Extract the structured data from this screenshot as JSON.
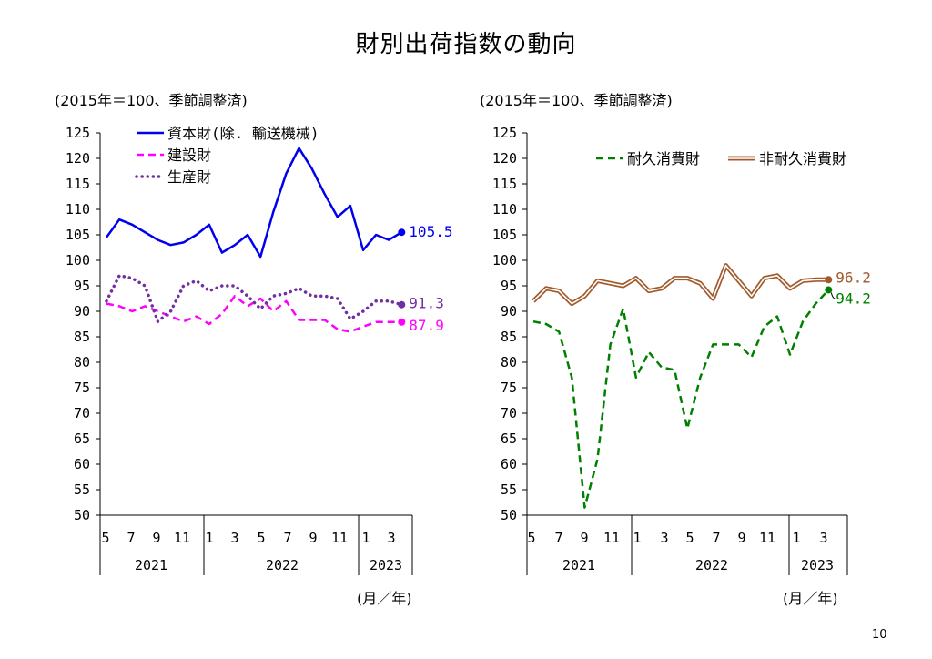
{
  "page": {
    "title": "財別出荷指数の動向",
    "page_number": "10"
  },
  "chart_data": [
    {
      "type": "line",
      "base_note": "(2015年＝100、季節調整済)",
      "unit_note": "(月／年)",
      "ylim": [
        50,
        125
      ],
      "yticks": [
        125,
        120,
        115,
        110,
        105,
        100,
        95,
        90,
        85,
        80,
        75,
        70,
        65,
        60,
        55,
        50
      ],
      "month_labels": [
        "5",
        "7",
        "9",
        "11",
        "1",
        "3",
        "5",
        "7",
        "9",
        "11",
        "1",
        "3"
      ],
      "year_labels": [
        "2021",
        "2022",
        "2023"
      ],
      "legend_position": "top-left",
      "series": [
        {
          "name": "資本財(除. 輸送機械)",
          "color": "#0000ee",
          "style": "solid",
          "end_label": "105.5",
          "values": [
            104.5,
            108,
            107,
            105.5,
            104,
            103,
            103.5,
            105,
            107,
            101.5,
            103,
            105,
            100.7,
            109.5,
            117,
            122,
            118,
            113,
            108.5,
            110.7,
            102,
            105,
            104,
            105.5
          ]
        },
        {
          "name": "建設財",
          "color": "#ff00ff",
          "style": "dashed",
          "end_label": "87.9",
          "values": [
            91.5,
            91,
            90,
            91,
            90,
            89,
            88,
            89,
            87.5,
            89.5,
            93,
            91,
            92.5,
            90,
            92,
            88.3,
            88.3,
            88.3,
            86.5,
            86,
            87,
            87.9,
            87.9,
            87.9
          ]
        },
        {
          "name": "生産財",
          "color": "#7030a0",
          "style": "dotted",
          "end_label": "91.3",
          "values": [
            92,
            97,
            96.5,
            95,
            88,
            90,
            95,
            96,
            94,
            95,
            95,
            93,
            90.5,
            93,
            93.5,
            94.5,
            93,
            93,
            92.5,
            88.5,
            90,
            92,
            92,
            91.3
          ]
        }
      ]
    },
    {
      "type": "line",
      "base_note": "(2015年＝100、季節調整済)",
      "unit_note": "(月／年)",
      "ylim": [
        50,
        125
      ],
      "yticks": [
        125,
        120,
        115,
        110,
        105,
        100,
        95,
        90,
        85,
        80,
        75,
        70,
        65,
        60,
        55,
        50
      ],
      "month_labels": [
        "5",
        "7",
        "9",
        "11",
        "1",
        "3",
        "5",
        "7",
        "9",
        "11",
        "1",
        "3"
      ],
      "year_labels": [
        "2021",
        "2022",
        "2023"
      ],
      "legend_position": "top-right",
      "series": [
        {
          "name": "耐久消費財",
          "color": "#008000",
          "style": "dashed",
          "end_label": "94.2",
          "values": [
            88,
            87.5,
            86,
            77,
            51.5,
            61,
            83.5,
            90.5,
            77,
            82,
            79,
            78.5,
            67,
            77,
            83.5,
            83.5,
            83.5,
            81,
            87,
            89,
            81.5,
            88,
            91.5,
            94.2
          ]
        },
        {
          "name": "非耐久消費財",
          "color": "#a05a2c",
          "style": "double",
          "end_label": "96.2",
          "values": [
            92,
            94.5,
            94,
            91.5,
            93,
            96,
            95.5,
            95,
            96.5,
            94,
            94.5,
            96.5,
            96.5,
            95.5,
            92.5,
            99,
            96,
            93,
            96.5,
            97,
            94.5,
            96,
            96.2,
            96.2
          ]
        }
      ]
    }
  ]
}
